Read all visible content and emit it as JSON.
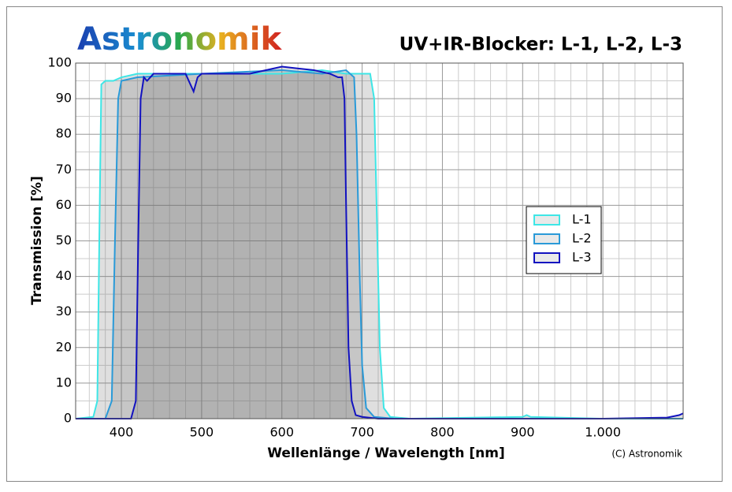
{
  "chart_data": {
    "type": "line",
    "logo": "Astronomik",
    "title": "UV+IR-Blocker: L-1, L-2, L-3",
    "xlabel": "Wellenlänge / Wavelength [nm]",
    "ylabel": "Transmission [%]",
    "credit": "(C) Astronomik",
    "xlim": [
      343,
      1100
    ],
    "ylim": [
      0,
      100
    ],
    "xticks": [
      400,
      500,
      600,
      700,
      800,
      900,
      {
        "value": 1000,
        "label": "1.000"
      }
    ],
    "yticks": [
      0,
      10,
      20,
      30,
      40,
      50,
      60,
      70,
      80,
      90,
      100
    ],
    "xminorticks": [
      360,
      380,
      420,
      440,
      460,
      480,
      520,
      540,
      560,
      580,
      620,
      640,
      660,
      680,
      720,
      740,
      760,
      780,
      820,
      840,
      860,
      880,
      920,
      940,
      960,
      980,
      1020,
      1040,
      1060,
      1080
    ],
    "yminorticks": [
      5,
      15,
      25,
      35,
      45,
      55,
      65,
      75,
      85,
      95
    ],
    "grid": true,
    "legend": "right",
    "series": [
      {
        "name": "L-1",
        "color": "#3ee6e6",
        "x": [
          343,
          365,
          370,
          373,
          375,
          380,
          390,
          400,
          420,
          450,
          500,
          550,
          600,
          650,
          680,
          700,
          710,
          715,
          718,
          722,
          727,
          735,
          760,
          900,
          905,
          910,
          1000,
          1100
        ],
        "values": [
          0,
          0.5,
          5,
          60,
          94,
          95,
          95,
          96,
          97,
          97,
          97,
          97,
          97,
          98,
          97,
          97,
          97,
          90,
          60,
          20,
          3,
          0.5,
          0,
          0.5,
          1,
          0.5,
          0,
          0
        ]
      },
      {
        "name": "L-2",
        "color": "#2a9ad8",
        "x": [
          343,
          380,
          388,
          392,
          396,
          400,
          420,
          500,
          600,
          650,
          680,
          690,
          693,
          697,
          700,
          705,
          715,
          740,
          1100
        ],
        "values": [
          0,
          0,
          5,
          50,
          90,
          95,
          96,
          97,
          98,
          97,
          98,
          96,
          80,
          40,
          15,
          3,
          0.5,
          0,
          0
        ]
      },
      {
        "name": "L-3",
        "color": "#1212c0",
        "x": [
          343,
          412,
          418,
          421,
          424,
          428,
          432,
          440,
          480,
          490,
          495,
          500,
          530,
          560,
          600,
          640,
          660,
          670,
          675,
          678,
          680,
          683,
          687,
          692,
          700,
          720,
          1000,
          1080,
          1095,
          1100
        ],
        "values": [
          0,
          0,
          5,
          50,
          90,
          96,
          95,
          97,
          97,
          92,
          96,
          97,
          97,
          97,
          99,
          98,
          97,
          96,
          96,
          90,
          60,
          20,
          5,
          1,
          0.5,
          0,
          0,
          0.3,
          1,
          1.5
        ]
      }
    ]
  }
}
